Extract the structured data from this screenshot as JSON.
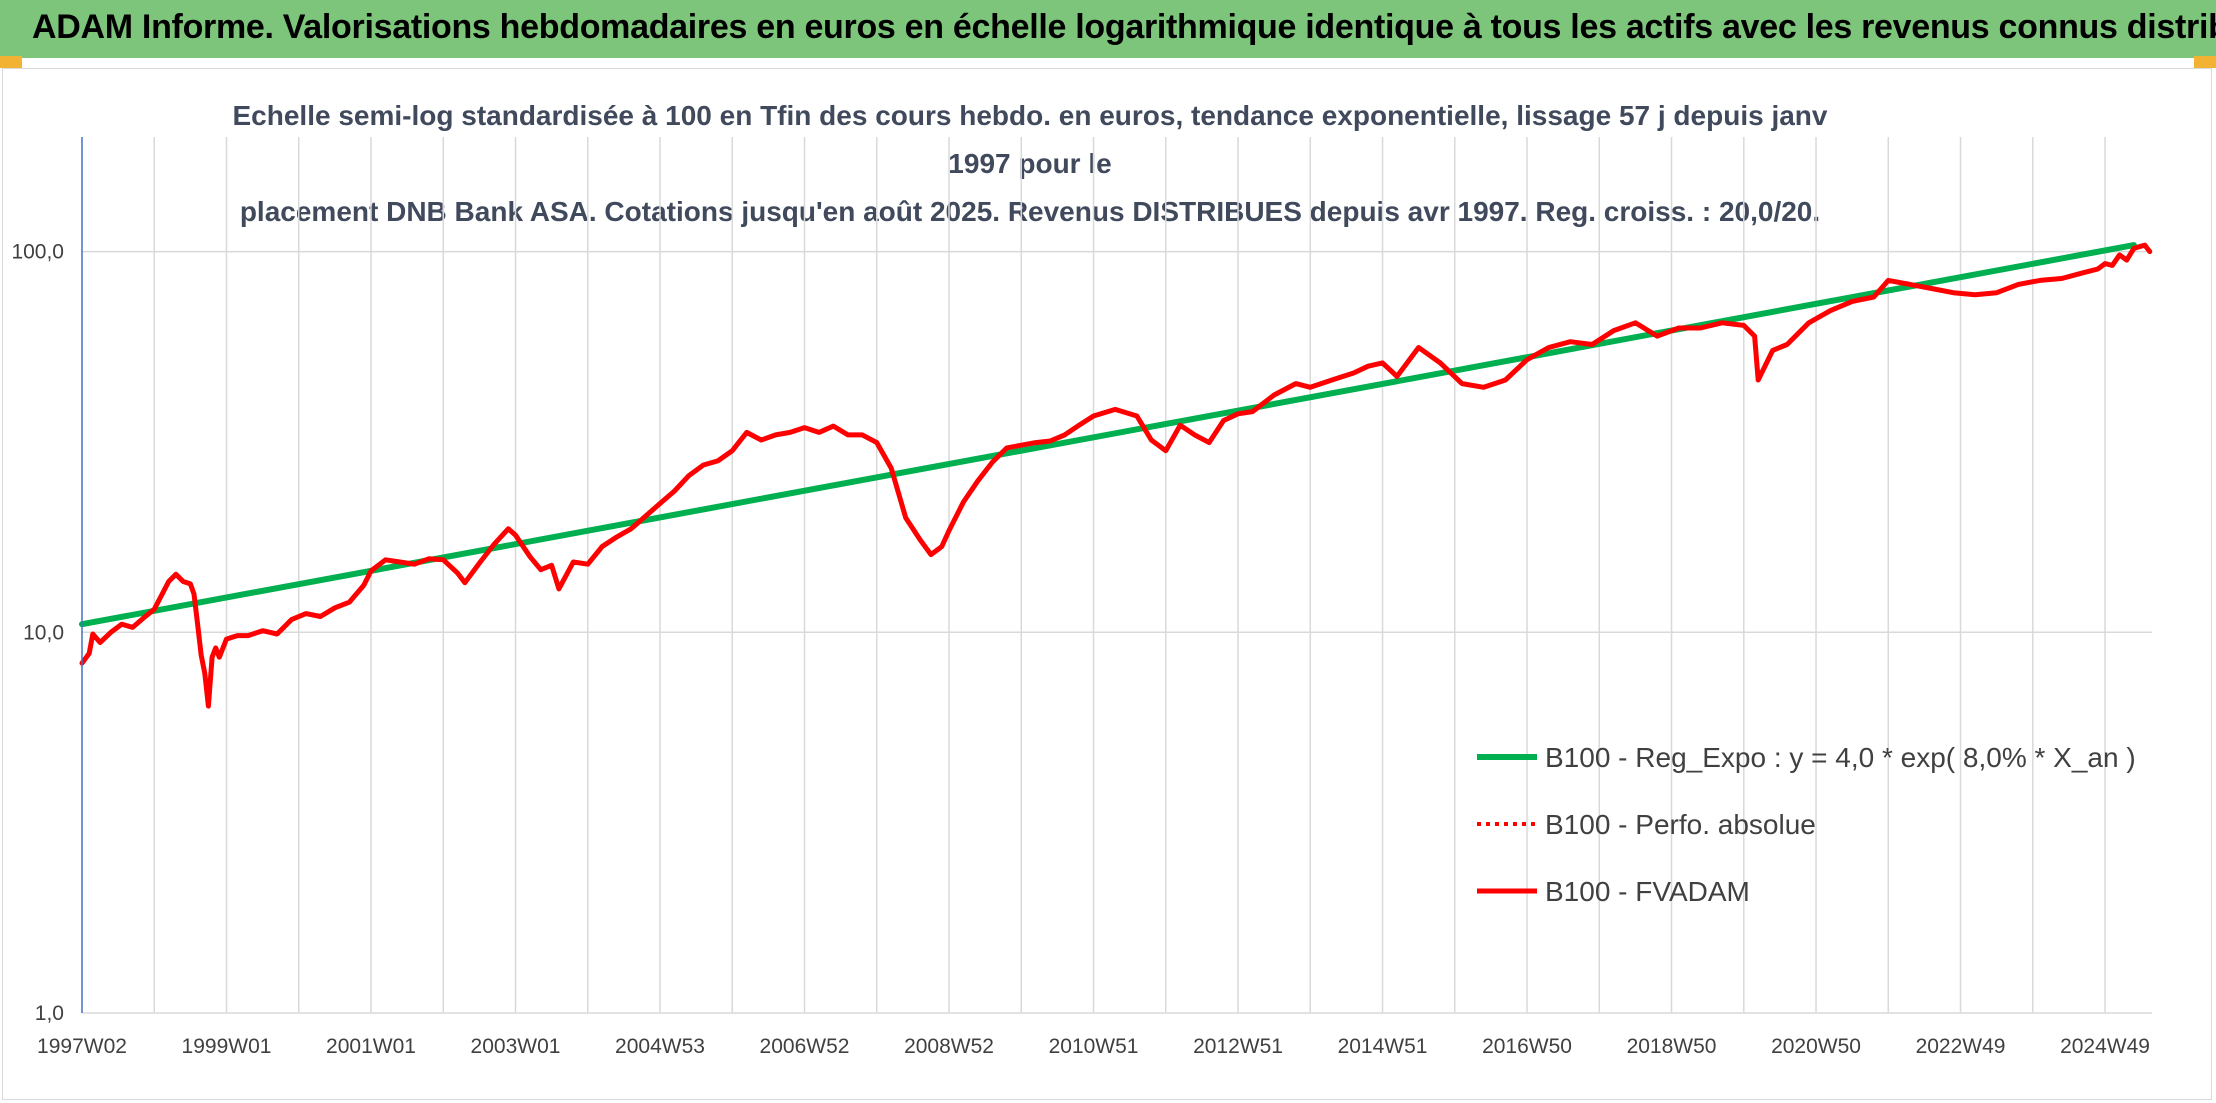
{
  "banner": {
    "title": "ADAM Informe. Valorisations hebdomadaires en euros en échelle logarithmique identique à tous les actifs avec les revenus connus distribués"
  },
  "colors": {
    "banner_bg": "#7dc57b",
    "corner_accent": "#f2b233",
    "regression": "#00b050",
    "fvadam": "#ff0000",
    "perfo": "#ff0000",
    "grid": "#d9d9d9",
    "y_axis_line": "#4472c4"
  },
  "chart_data": {
    "type": "line",
    "subtitle_line1": "Echelle semi-log standardisée à 100 en Tfin des cours hebdo. en euros, tendance exponentielle, lissage 57 j depuis janv 1997 pour le",
    "subtitle_line2": "placement DNB Bank ASA. Cotations jusqu'en août 2025. Revenus DISTRIBUES depuis avr 1997. Reg. croiss. : 20,0/20.",
    "y_scale": "log",
    "ylim": [
      1,
      200
    ],
    "xlim": [
      1997.0,
      2025.65
    ],
    "y_ticks": [
      1,
      10,
      100
    ],
    "y_tick_labels": [
      "1,0",
      "10,0",
      "100,0"
    ],
    "x_tick_labels": [
      "1997W02",
      "1999W01",
      "2001W01",
      "2003W01",
      "2004W53",
      "2006W52",
      "2008W52",
      "2010W51",
      "2012W51",
      "2014W51",
      "2016W50",
      "2018W50",
      "2020W50",
      "2022W49",
      "2024W49"
    ],
    "x_tick_positions": [
      1997.0,
      1999.0,
      2001.0,
      2003.0,
      2005.0,
      2007.0,
      2009.0,
      2011.0,
      2013.0,
      2015.0,
      2017.0,
      2019.0,
      2021.0,
      2023.0,
      2025.0
    ],
    "grid": "vertical and horizontal",
    "legend_position": "bottom-right",
    "series": [
      {
        "name": "B100 - Reg_Expo : y = 4,0 * exp( 8,0% *  X_an )",
        "style": "solid-green",
        "x": [
          1997.0,
          2025.4
        ],
        "y": [
          10.5,
          104
        ]
      },
      {
        "name": "B100 - Perfo. absolue",
        "style": "dotted-red",
        "x": [],
        "y": []
      },
      {
        "name": "B100 - FVADAM",
        "style": "solid-red",
        "x": [
          1997.0,
          1997.1,
          1997.15,
          1997.25,
          1997.4,
          1997.55,
          1997.7,
          1997.85,
          1998.0,
          1998.1,
          1998.2,
          1998.3,
          1998.4,
          1998.5,
          1998.55,
          1998.6,
          1998.65,
          1998.7,
          1998.75,
          1998.8,
          1998.85,
          1998.9,
          1999.0,
          1999.15,
          1999.3,
          1999.5,
          1999.7,
          1999.9,
          2000.1,
          2000.3,
          2000.5,
          2000.7,
          2000.9,
          2001.0,
          2001.2,
          2001.4,
          2001.6,
          2001.8,
          2002.0,
          2002.2,
          2002.3,
          2002.5,
          2002.7,
          2002.9,
          2003.0,
          2003.2,
          2003.35,
          2003.5,
          2003.6,
          2003.8,
          2004.0,
          2004.2,
          2004.4,
          2004.6,
          2004.8,
          2005.0,
          2005.2,
          2005.4,
          2005.6,
          2005.8,
          2006.0,
          2006.2,
          2006.4,
          2006.6,
          2006.8,
          2007.0,
          2007.2,
          2007.4,
          2007.6,
          2007.8,
          2008.0,
          2008.2,
          2008.4,
          2008.6,
          2008.75,
          2008.9,
          2009.0,
          2009.2,
          2009.4,
          2009.6,
          2009.8,
          2010.0,
          2010.2,
          2010.4,
          2010.6,
          2010.8,
          2011.0,
          2011.3,
          2011.6,
          2011.8,
          2012.0,
          2012.2,
          2012.4,
          2012.6,
          2012.8,
          2013.0,
          2013.2,
          2013.5,
          2013.8,
          2014.0,
          2014.3,
          2014.6,
          2014.8,
          2015.0,
          2015.2,
          2015.5,
          2015.8,
          2016.1,
          2016.4,
          2016.7,
          2017.0,
          2017.3,
          2017.6,
          2017.9,
          2018.2,
          2018.5,
          2018.8,
          2019.1,
          2019.4,
          2019.7,
          2020.0,
          2020.15,
          2020.2,
          2020.4,
          2020.6,
          2020.9,
          2021.2,
          2021.5,
          2021.8,
          2022.0,
          2022.3,
          2022.6,
          2022.9,
          2023.2,
          2023.5,
          2023.8,
          2024.1,
          2024.4,
          2024.7,
          2024.9,
          2025.0,
          2025.1,
          2025.2,
          2025.3,
          2025.4,
          2025.55,
          2025.62
        ],
        "y": [
          8.3,
          8.8,
          9.9,
          9.4,
          10.0,
          10.5,
          10.3,
          10.9,
          11.5,
          12.5,
          13.6,
          14.2,
          13.6,
          13.4,
          12.6,
          10.5,
          8.7,
          7.8,
          6.4,
          8.6,
          9.1,
          8.6,
          9.6,
          9.8,
          9.8,
          10.1,
          9.9,
          10.8,
          11.2,
          11.0,
          11.6,
          12.0,
          13.3,
          14.5,
          15.5,
          15.3,
          15.1,
          15.6,
          15.5,
          14.3,
          13.5,
          15.2,
          17.0,
          18.7,
          18.0,
          15.8,
          14.6,
          15.0,
          13.0,
          15.3,
          15.1,
          16.8,
          17.8,
          18.7,
          20.2,
          21.8,
          23.5,
          25.8,
          27.5,
          28.2,
          30.0,
          33.5,
          32.0,
          33.0,
          33.5,
          34.5,
          33.5,
          34.8,
          33.0,
          33.0,
          31.5,
          27.0,
          20.0,
          17.5,
          16.0,
          16.8,
          18.5,
          22.0,
          25.0,
          28.0,
          30.5,
          31.0,
          31.5,
          31.8,
          33.0,
          35.0,
          37.0,
          38.5,
          37.0,
          32.0,
          30.0,
          35.0,
          33.0,
          31.5,
          36.0,
          37.5,
          38.0,
          42.0,
          45.0,
          44.0,
          46.0,
          48.0,
          50.0,
          51.0,
          47.0,
          56.0,
          51.0,
          45.0,
          44.0,
          46.0,
          52.0,
          56.0,
          58.0,
          57.0,
          62.0,
          65.0,
          60.0,
          63.0,
          63.0,
          65.0,
          64.0,
          60.0,
          46.0,
          55.0,
          57.0,
          65.0,
          70.0,
          74.0,
          76.0,
          84.0,
          82.0,
          80.0,
          78.0,
          77.0,
          78.0,
          82.0,
          84.0,
          85.0,
          88.0,
          90.0,
          93.0,
          92.0,
          98.0,
          95.0,
          102.0,
          104.0,
          100.0
        ]
      }
    ]
  }
}
